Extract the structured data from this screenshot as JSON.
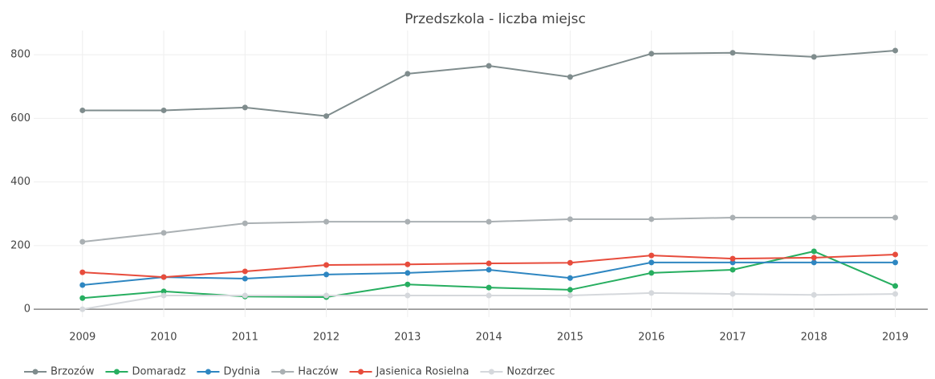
{
  "chart_data": {
    "type": "line",
    "title": "Przedszkola - liczba miejsc",
    "x": [
      2009,
      2010,
      2011,
      2012,
      2013,
      2014,
      2015,
      2016,
      2017,
      2018,
      2019
    ],
    "xlim": [
      2008.4,
      2019.4
    ],
    "xticks": [
      2009,
      2010,
      2011,
      2012,
      2013,
      2014,
      2015,
      2016,
      2017,
      2018,
      2019
    ],
    "ylim": [
      -25,
      876
    ],
    "yticks": [
      0,
      200,
      400,
      600,
      800
    ],
    "grid": true,
    "legend": "bottom-left",
    "series": [
      {
        "name": "Brzozów",
        "color": "#7f8c8d",
        "values": [
          625,
          625,
          634,
          607,
          740,
          765,
          730,
          803,
          806,
          793,
          813
        ]
      },
      {
        "name": "Domaradz",
        "color": "#27ae60",
        "values": [
          35,
          56,
          40,
          38,
          78,
          68,
          61,
          114,
          124,
          182,
          73
        ]
      },
      {
        "name": "Dydnia",
        "color": "#2e86c1",
        "values": [
          76,
          101,
          96,
          109,
          114,
          124,
          98,
          147,
          147,
          147,
          147
        ]
      },
      {
        "name": "Haczów",
        "color": "#aab0b3",
        "values": [
          212,
          240,
          270,
          275,
          275,
          275,
          283,
          283,
          288,
          288,
          288
        ]
      },
      {
        "name": "Jasienica Rosielna",
        "color": "#e74c3c",
        "values": [
          116,
          101,
          119,
          139,
          141,
          144,
          146,
          169,
          159,
          162,
          172
        ]
      },
      {
        "name": "Nozdrzec",
        "color": "#d5d8dc",
        "values": [
          0,
          43,
          43,
          43,
          43,
          43,
          43,
          51,
          48,
          45,
          48
        ]
      }
    ]
  }
}
